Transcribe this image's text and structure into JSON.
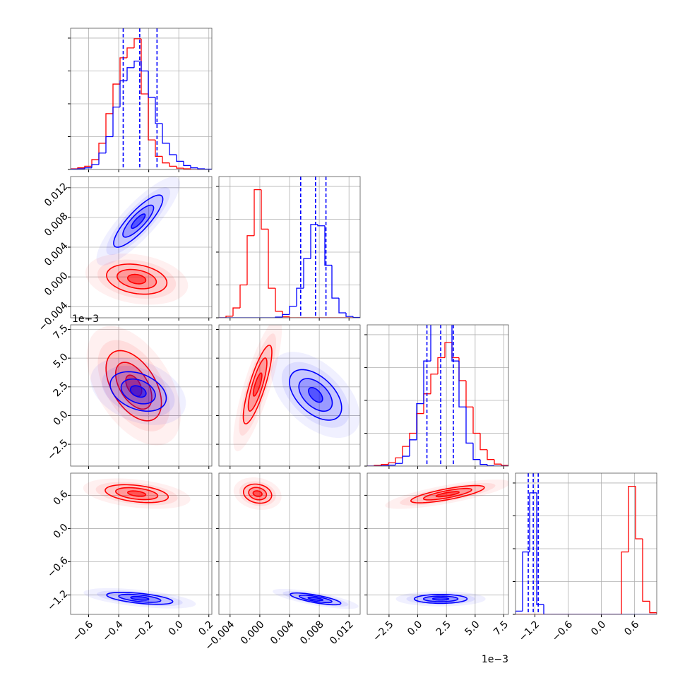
{
  "chart_data": {
    "type": "corner",
    "grid": true,
    "series_colors": [
      "#ff0000",
      "#0000ff"
    ],
    "quantile_color": "#0000ff",
    "hist_ylim": [
      0,
      4.3
    ],
    "hist_yticks": [
      0,
      1,
      2,
      3,
      4
    ],
    "variables": [
      {
        "lim": [
          -0.72,
          0.22
        ],
        "ticks": [
          {
            "value": -0.6,
            "label": "−0.6"
          },
          {
            "value": -0.4,
            "label": "−0.4"
          },
          {
            "value": -0.2,
            "label": "−0.2"
          },
          {
            "value": 0.0,
            "label": "0.0"
          },
          {
            "value": 0.2,
            "label": "0.2"
          }
        ],
        "bins": [
          -0.72,
          -0.673,
          -0.626,
          -0.579,
          -0.532,
          -0.485,
          -0.438,
          -0.391,
          -0.344,
          -0.297,
          -0.25,
          -0.203,
          -0.156,
          -0.109,
          -0.062,
          -0.015,
          0.032,
          0.079,
          0.126,
          0.173,
          0.22
        ],
        "counts": [
          [
            0.02,
            0.05,
            0.1,
            0.3,
            0.8,
            1.7,
            2.6,
            3.4,
            3.7,
            3.98,
            2.3,
            0.9,
            0.4,
            0.2,
            0.1,
            0.04,
            0.02,
            0,
            0,
            0
          ],
          [
            0.01,
            0.02,
            0.05,
            0.15,
            0.5,
            1.0,
            1.9,
            2.7,
            3.1,
            3.3,
            3.0,
            2.2,
            1.4,
            0.8,
            0.45,
            0.25,
            0.12,
            0.05,
            0.02,
            0.01
          ]
        ],
        "quantiles": [
          -0.37,
          -0.26,
          -0.145
        ]
      },
      {
        "lim": [
          -0.0055,
          0.0135
        ],
        "ticks": [
          {
            "value": -0.004,
            "label": "−0.004"
          },
          {
            "value": 0.0,
            "label": "0.000"
          },
          {
            "value": 0.004,
            "label": "0.004"
          },
          {
            "value": 0.008,
            "label": "0.008"
          },
          {
            "value": 0.012,
            "label": "0.012"
          }
        ],
        "bins": [
          -0.0055,
          -0.00455,
          -0.0036,
          -0.00265,
          -0.0017,
          -0.00075,
          0.0002,
          0.00115,
          0.0021,
          0.00305,
          0.004,
          0.00495,
          0.0059,
          0.00685,
          0.0078,
          0.00875,
          0.0097,
          0.01065,
          0.0116,
          0.01255,
          0.0135
        ],
        "counts": [
          [
            0,
            0.05,
            0.3,
            1.0,
            2.5,
            3.9,
            2.7,
            0.9,
            0.2,
            0.03,
            0,
            0,
            0,
            0,
            0,
            0,
            0,
            0,
            0,
            0
          ],
          [
            0,
            0,
            0,
            0,
            0,
            0,
            0,
            0,
            0.02,
            0.1,
            0.35,
            0.9,
            1.8,
            2.84,
            2.8,
            1.6,
            0.6,
            0.15,
            0.04,
            0.01
          ]
        ],
        "quantiles": [
          0.0055,
          0.0075,
          0.0089
        ]
      },
      {
        "lim": [
          -4.4,
          7.9
        ],
        "offset_label": "1e−3",
        "ticks": [
          {
            "value": -2.5,
            "label": "−2.5"
          },
          {
            "value": 0.0,
            "label": "0.0"
          },
          {
            "value": 2.5,
            "label": "2.5"
          },
          {
            "value": 5.0,
            "label": "5.0"
          },
          {
            "value": 7.5,
            "label": "7.5"
          }
        ],
        "bins": [
          -4.4,
          -3.785,
          -3.17,
          -2.555,
          -1.94,
          -1.325,
          -0.71,
          -0.095,
          0.52,
          1.135,
          1.75,
          2.365,
          2.98,
          3.595,
          4.21,
          4.825,
          5.44,
          6.055,
          6.67,
          7.285,
          7.9
        ],
        "counts": [
          [
            0,
            0.02,
            0.05,
            0.1,
            0.25,
            0.6,
            1.0,
            1.6,
            2.2,
            2.8,
            3.3,
            3.76,
            3.3,
            2.6,
            1.8,
            1.0,
            0.5,
            0.2,
            0.06,
            0.02
          ],
          [
            0,
            0,
            0.01,
            0.03,
            0.08,
            0.3,
            0.8,
            1.9,
            3.2,
            4.4,
            4.4,
            4.4,
            3.2,
            1.8,
            0.7,
            0.2,
            0.05,
            0.01,
            0,
            0
          ]
        ],
        "quantiles": [
          0.8,
          2.0,
          3.1
        ]
      },
      {
        "lim": [
          -1.55,
          1.0
        ],
        "ticks": [
          {
            "value": -1.2,
            "label": "−1.2"
          },
          {
            "value": -0.6,
            "label": "−0.6"
          },
          {
            "value": 0.0,
            "label": "0.0"
          },
          {
            "value": 0.6,
            "label": "0.6"
          }
        ],
        "bins": [
          -1.55,
          -1.4225,
          -1.295,
          -1.1675,
          -1.04,
          -0.9125,
          -0.785,
          -0.6575,
          -0.53,
          -0.4025,
          -0.275,
          -0.1475,
          -0.02,
          0.1075,
          0.235,
          0.3625,
          0.49,
          0.6175,
          0.745,
          0.8725,
          1.0
        ],
        "counts": [
          [
            0,
            0,
            0,
            0,
            0,
            0,
            0,
            0,
            0,
            0,
            0,
            0,
            0,
            0,
            0,
            1.9,
            3.9,
            2.3,
            0.4,
            0.05
          ],
          [
            0.1,
            1.9,
            3.7,
            0.3,
            0,
            0,
            0,
            0,
            0,
            0,
            0,
            0,
            0,
            0,
            0,
            0,
            0,
            0,
            0,
            0
          ]
        ],
        "quantiles": [
          -1.32,
          -1.23,
          -1.14
        ]
      }
    ],
    "panels": [
      {
        "x": 0,
        "y": 1,
        "contours": [
          [
            {
              "cx": -0.28,
              "cy": -0.0003,
              "ax": 0.2,
              "ay": -0.0007,
              "bx": 0.02,
              "by": 0.0019
            },
            {
              "cx": -0.28,
              "cy": -0.0003,
              "ax": 0.13,
              "ay": -0.0005,
              "bx": 0.013,
              "by": 0.0012
            },
            {
              "cx": -0.28,
              "cy": -0.0003,
              "ax": 0.06,
              "ay": -0.0002,
              "bx": 0.006,
              "by": 0.0006
            }
          ],
          [
            {
              "cx": -0.27,
              "cy": 0.0075,
              "ax": 0.16,
              "ay": 0.0033,
              "bx": -0.035,
              "by": 0.0012
            },
            {
              "cx": -0.27,
              "cy": 0.0075,
              "ax": 0.1,
              "ay": 0.002,
              "bx": -0.022,
              "by": 0.0008
            },
            {
              "cx": -0.27,
              "cy": 0.0075,
              "ax": 0.045,
              "ay": 0.0009,
              "bx": -0.01,
              "by": 0.00035
            }
          ]
        ]
      },
      {
        "x": 0,
        "y": 2,
        "contours": [
          [
            {
              "cx": -0.3,
              "cy": 2.6,
              "ax": 0.12,
              "ay": -3.0,
              "bx": 0.14,
              "by": 0.6
            },
            {
              "cx": -0.3,
              "cy": 2.6,
              "ax": 0.08,
              "ay": -2.0,
              "bx": 0.09,
              "by": 0.4
            },
            {
              "cx": -0.3,
              "cy": 2.6,
              "ax": 0.035,
              "ay": -0.9,
              "bx": 0.04,
              "by": 0.2
            }
          ],
          [
            {
              "cx": -0.27,
              "cy": 2.1,
              "ax": 0.18,
              "ay": -1.0,
              "bx": 0.05,
              "by": 1.4
            },
            {
              "cx": -0.27,
              "cy": 2.1,
              "ax": 0.11,
              "ay": -0.6,
              "bx": 0.03,
              "by": 0.9
            },
            {
              "cx": -0.27,
              "cy": 2.1,
              "ax": 0.05,
              "ay": -0.3,
              "bx": 0.015,
              "by": 0.4
            }
          ]
        ]
      },
      {
        "x": 0,
        "y": 3,
        "contours": [
          [
            {
              "cx": -0.28,
              "cy": 0.63,
              "ax": 0.21,
              "ay": -0.06,
              "bx": 0,
              "by": 0.15
            },
            {
              "cx": -0.28,
              "cy": 0.63,
              "ax": 0.14,
              "ay": -0.04,
              "bx": 0,
              "by": 0.1
            },
            {
              "cx": -0.28,
              "cy": 0.63,
              "ax": 0.06,
              "ay": -0.02,
              "bx": 0,
              "by": 0.045
            }
          ],
          [
            {
              "cx": -0.26,
              "cy": -1.26,
              "ax": 0.22,
              "ay": -0.06,
              "bx": 0,
              "by": 0.09
            },
            {
              "cx": -0.26,
              "cy": -1.26,
              "ax": 0.14,
              "ay": -0.04,
              "bx": 0,
              "by": 0.06
            },
            {
              "cx": -0.26,
              "cy": -1.26,
              "ax": 0.06,
              "ay": -0.015,
              "bx": 0,
              "by": 0.03
            }
          ]
        ]
      },
      {
        "x": 1,
        "y": 2,
        "contours": [
          [
            {
              "cx": -0.0003,
              "cy": 2.7,
              "ax": 0.0017,
              "ay": 3.4,
              "bx": 0.0009,
              "by": -0.4
            },
            {
              "cx": -0.0003,
              "cy": 2.7,
              "ax": 0.0011,
              "ay": 2.3,
              "bx": 0.0006,
              "by": -0.25
            },
            {
              "cx": -0.0003,
              "cy": 2.7,
              "ax": 0.0005,
              "ay": 1.0,
              "bx": 0.0003,
              "by": -0.1
            }
          ],
          [
            {
              "cx": 0.0075,
              "cy": 1.8,
              "ax": 0.0033,
              "ay": -1.7,
              "bx": 0.0012,
              "by": 1.4
            },
            {
              "cx": 0.0075,
              "cy": 1.8,
              "ax": 0.0021,
              "ay": -1.1,
              "bx": 0.0008,
              "by": 0.9
            },
            {
              "cx": 0.0075,
              "cy": 1.8,
              "ax": 0.0009,
              "ay": -0.5,
              "bx": 0.0003,
              "by": 0.4
            }
          ]
        ]
      },
      {
        "x": 1,
        "y": 3,
        "contours": [
          [
            {
              "cx": -0.0003,
              "cy": 0.63,
              "ax": 0.0019,
              "ay": -0.03,
              "bx": 0,
              "by": 0.17
            },
            {
              "cx": -0.0003,
              "cy": 0.63,
              "ax": 0.0012,
              "ay": -0.02,
              "bx": 0,
              "by": 0.11
            },
            {
              "cx": -0.0003,
              "cy": 0.63,
              "ax": 0.0006,
              "ay": -0.01,
              "bx": 0,
              "by": 0.05
            }
          ],
          [
            {
              "cx": 0.0075,
              "cy": -1.27,
              "ax": 0.0034,
              "ay": -0.08,
              "bx": 0,
              "by": 0.07
            },
            {
              "cx": 0.0075,
              "cy": -1.27,
              "ax": 0.0022,
              "ay": -0.05,
              "bx": 0,
              "by": 0.045
            },
            {
              "cx": 0.0075,
              "cy": -1.27,
              "ax": 0.001,
              "ay": -0.02,
              "bx": 0,
              "by": 0.02
            }
          ]
        ]
      },
      {
        "x": 2,
        "y": 3,
        "contours": [
          [
            {
              "cx": 2.6,
              "cy": 0.62,
              "ax": 3.2,
              "ay": 0.12,
              "bx": 0,
              "by": 0.1
            },
            {
              "cx": 2.6,
              "cy": 0.62,
              "ax": 2.1,
              "ay": 0.08,
              "bx": 0,
              "by": 0.065
            },
            {
              "cx": 2.6,
              "cy": 0.62,
              "ax": 1.0,
              "ay": 0.035,
              "bx": 0,
              "by": 0.03
            }
          ],
          [
            {
              "cx": 2.0,
              "cy": -1.27,
              "ax": 2.3,
              "ay": 0,
              "bx": 0,
              "by": 0.08
            },
            {
              "cx": 2.0,
              "cy": -1.27,
              "ax": 1.5,
              "ay": 0,
              "bx": 0,
              "by": 0.05
            },
            {
              "cx": 2.0,
              "cy": -1.27,
              "ax": 0.7,
              "ay": 0,
              "bx": 0,
              "by": 0.022
            }
          ]
        ]
      }
    ]
  }
}
